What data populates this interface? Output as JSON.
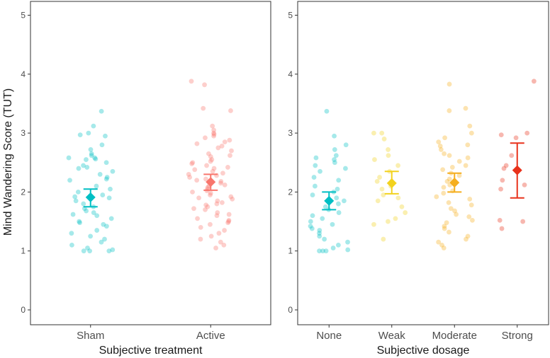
{
  "ylabel": "Mind Wandering Score (TUT)",
  "chart_data": [
    {
      "type": "scatter",
      "title": "",
      "xlabel": "Subjective treatment",
      "ylabel": "Mind Wandering Score (TUT)",
      "ylim": [
        0,
        5
      ],
      "yticks": [
        "0",
        "1",
        "2",
        "3",
        "4",
        "5"
      ],
      "grid": false,
      "categories": [
        "Sham",
        "Active"
      ],
      "series": [
        {
          "name": "Sham",
          "color": "#00BFC4",
          "summary": {
            "mean": 1.91,
            "lower": 1.75,
            "upper": 2.05
          },
          "points": [
            3.37,
            3.12,
            3.0,
            2.97,
            2.95,
            2.8,
            2.72,
            2.65,
            2.62,
            2.58,
            2.58,
            2.56,
            2.55,
            2.5,
            2.45,
            2.42,
            2.4,
            2.35,
            2.3,
            2.25,
            2.22,
            2.2,
            2.1,
            2.05,
            2.0,
            1.95,
            1.92,
            1.9,
            1.85,
            1.8,
            1.75,
            1.72,
            1.68,
            1.65,
            1.62,
            1.6,
            1.55,
            1.5,
            1.48,
            1.45,
            1.42,
            1.35,
            1.3,
            1.25,
            1.2,
            1.15,
            1.1,
            1.05,
            1.02,
            1.0,
            1.0,
            1.0
          ]
        },
        {
          "name": "Active",
          "color": "#F8766D",
          "summary": {
            "mean": 2.17,
            "lower": 2.03,
            "upper": 2.3
          },
          "points": [
            3.88,
            3.82,
            3.42,
            3.38,
            3.12,
            3.05,
            3.0,
            2.98,
            2.95,
            2.92,
            2.88,
            2.85,
            2.82,
            2.78,
            2.75,
            2.7,
            2.65,
            2.62,
            2.6,
            2.55,
            2.52,
            2.5,
            2.48,
            2.45,
            2.42,
            2.4,
            2.38,
            2.35,
            2.32,
            2.3,
            2.28,
            2.25,
            2.22,
            2.2,
            2.18,
            2.15,
            2.12,
            2.1,
            2.08,
            2.05,
            2.02,
            2.0,
            1.98,
            1.95,
            1.92,
            1.9,
            1.88,
            1.85,
            1.82,
            1.8,
            1.78,
            1.75,
            1.72,
            1.7,
            1.65,
            1.62,
            1.6,
            1.55,
            1.52,
            1.5,
            1.48,
            1.45,
            1.4,
            1.35,
            1.3,
            1.25,
            1.2,
            1.15,
            1.1,
            1.05
          ]
        }
      ]
    },
    {
      "type": "scatter",
      "title": "",
      "xlabel": "Subjective dosage",
      "ylabel": "",
      "ylim": [
        0,
        5
      ],
      "yticks": [
        "0",
        "1",
        "2",
        "3",
        "4",
        "5"
      ],
      "grid": false,
      "categories": [
        "None",
        "Weak",
        "Moderate",
        "Strong"
      ],
      "series": [
        {
          "name": "None",
          "color": "#00BFC4",
          "summary": {
            "mean": 1.85,
            "lower": 1.7,
            "upper": 2.0
          },
          "points": [
            3.37,
            2.95,
            2.8,
            2.72,
            2.62,
            2.58,
            2.55,
            2.5,
            2.45,
            2.4,
            2.35,
            2.25,
            2.2,
            2.1,
            2.05,
            2.0,
            1.95,
            1.9,
            1.85,
            1.8,
            1.75,
            1.7,
            1.65,
            1.6,
            1.55,
            1.5,
            1.45,
            1.42,
            1.38,
            1.35,
            1.3,
            1.25,
            1.2,
            1.15,
            1.1,
            1.05,
            1.02,
            1.0,
            1.0,
            1.0
          ]
        },
        {
          "name": "Weak",
          "color": "#F2D21E",
          "summary": {
            "mean": 2.15,
            "lower": 1.97,
            "upper": 2.35
          },
          "points": [
            3.0,
            3.0,
            2.9,
            2.72,
            2.62,
            2.55,
            2.45,
            2.35,
            2.25,
            2.18,
            2.1,
            2.05,
            1.95,
            1.9,
            1.85,
            1.75,
            1.65,
            1.55,
            1.5,
            1.45,
            1.2
          ]
        },
        {
          "name": "Moderate",
          "color": "#F5AE1E",
          "summary": {
            "mean": 2.16,
            "lower": 2.0,
            "upper": 2.32
          },
          "points": [
            3.83,
            3.42,
            3.38,
            3.12,
            3.0,
            2.92,
            2.85,
            2.8,
            2.78,
            2.72,
            2.65,
            2.62,
            2.58,
            2.52,
            2.45,
            2.42,
            2.38,
            2.32,
            2.28,
            2.22,
            2.18,
            2.12,
            2.08,
            2.02,
            1.98,
            1.92,
            1.88,
            1.82,
            1.78,
            1.72,
            1.68,
            1.62,
            1.58,
            1.52,
            1.48,
            1.42,
            1.38,
            1.32,
            1.25,
            1.2,
            1.15,
            1.1,
            1.05
          ]
        },
        {
          "name": "Strong",
          "color": "#E8321B",
          "summary": {
            "mean": 2.37,
            "lower": 1.9,
            "upper": 2.83
          },
          "points": [
            3.88,
            3.0,
            2.97,
            2.92,
            2.62,
            2.45,
            2.4,
            2.2,
            2.12,
            2.05,
            1.52,
            1.5,
            1.38
          ]
        }
      ]
    }
  ]
}
